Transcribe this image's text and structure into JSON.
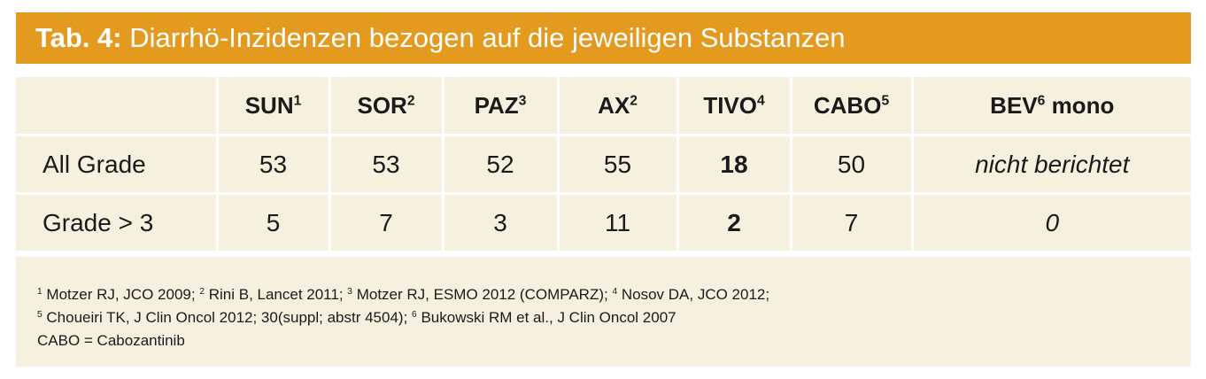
{
  "title": {
    "label": "Tab. 4:",
    "text": "Diarrhö-Inzidenzen bezogen auf die jeweiligen Substanzen"
  },
  "table": {
    "columns": [
      {
        "name": "SUN",
        "sup": "1"
      },
      {
        "name": "SOR",
        "sup": "2"
      },
      {
        "name": "PAZ",
        "sup": "3"
      },
      {
        "name": "AX",
        "sup": "2"
      },
      {
        "name": "TIVO",
        "sup": "4"
      },
      {
        "name": "CABO",
        "sup": "5"
      },
      {
        "name": "BEV",
        "sup": "6",
        "suffix": "mono"
      }
    ],
    "rows": [
      {
        "label": "All Grade",
        "cells": [
          53,
          53,
          52,
          55,
          18,
          50,
          "nicht berichtet"
        ]
      },
      {
        "label": "Grade > 3",
        "cells": [
          5,
          7,
          3,
          11,
          2,
          7,
          0
        ]
      }
    ]
  },
  "footnotes": [
    [
      {
        "sup": "1",
        "text": "Motzer RJ, JCO 2009;"
      },
      {
        "sup": "2",
        "text": "Rini B, Lancet 2011;"
      },
      {
        "sup": "3",
        "text": "Motzer RJ, ESMO 2012 (COMPARZ);"
      },
      {
        "sup": "4",
        "text": "Nosov DA, JCO 2012;"
      }
    ],
    [
      {
        "sup": "5",
        "text": "Choueiri TK, J Clin Oncol 2012; 30(suppl; abstr 4504);"
      },
      {
        "sup": "6",
        "text": "Bukowski RM et al., J Clin Oncol 2007"
      }
    ],
    [
      {
        "text": "CABO = Cabozantinib"
      }
    ]
  ]
}
